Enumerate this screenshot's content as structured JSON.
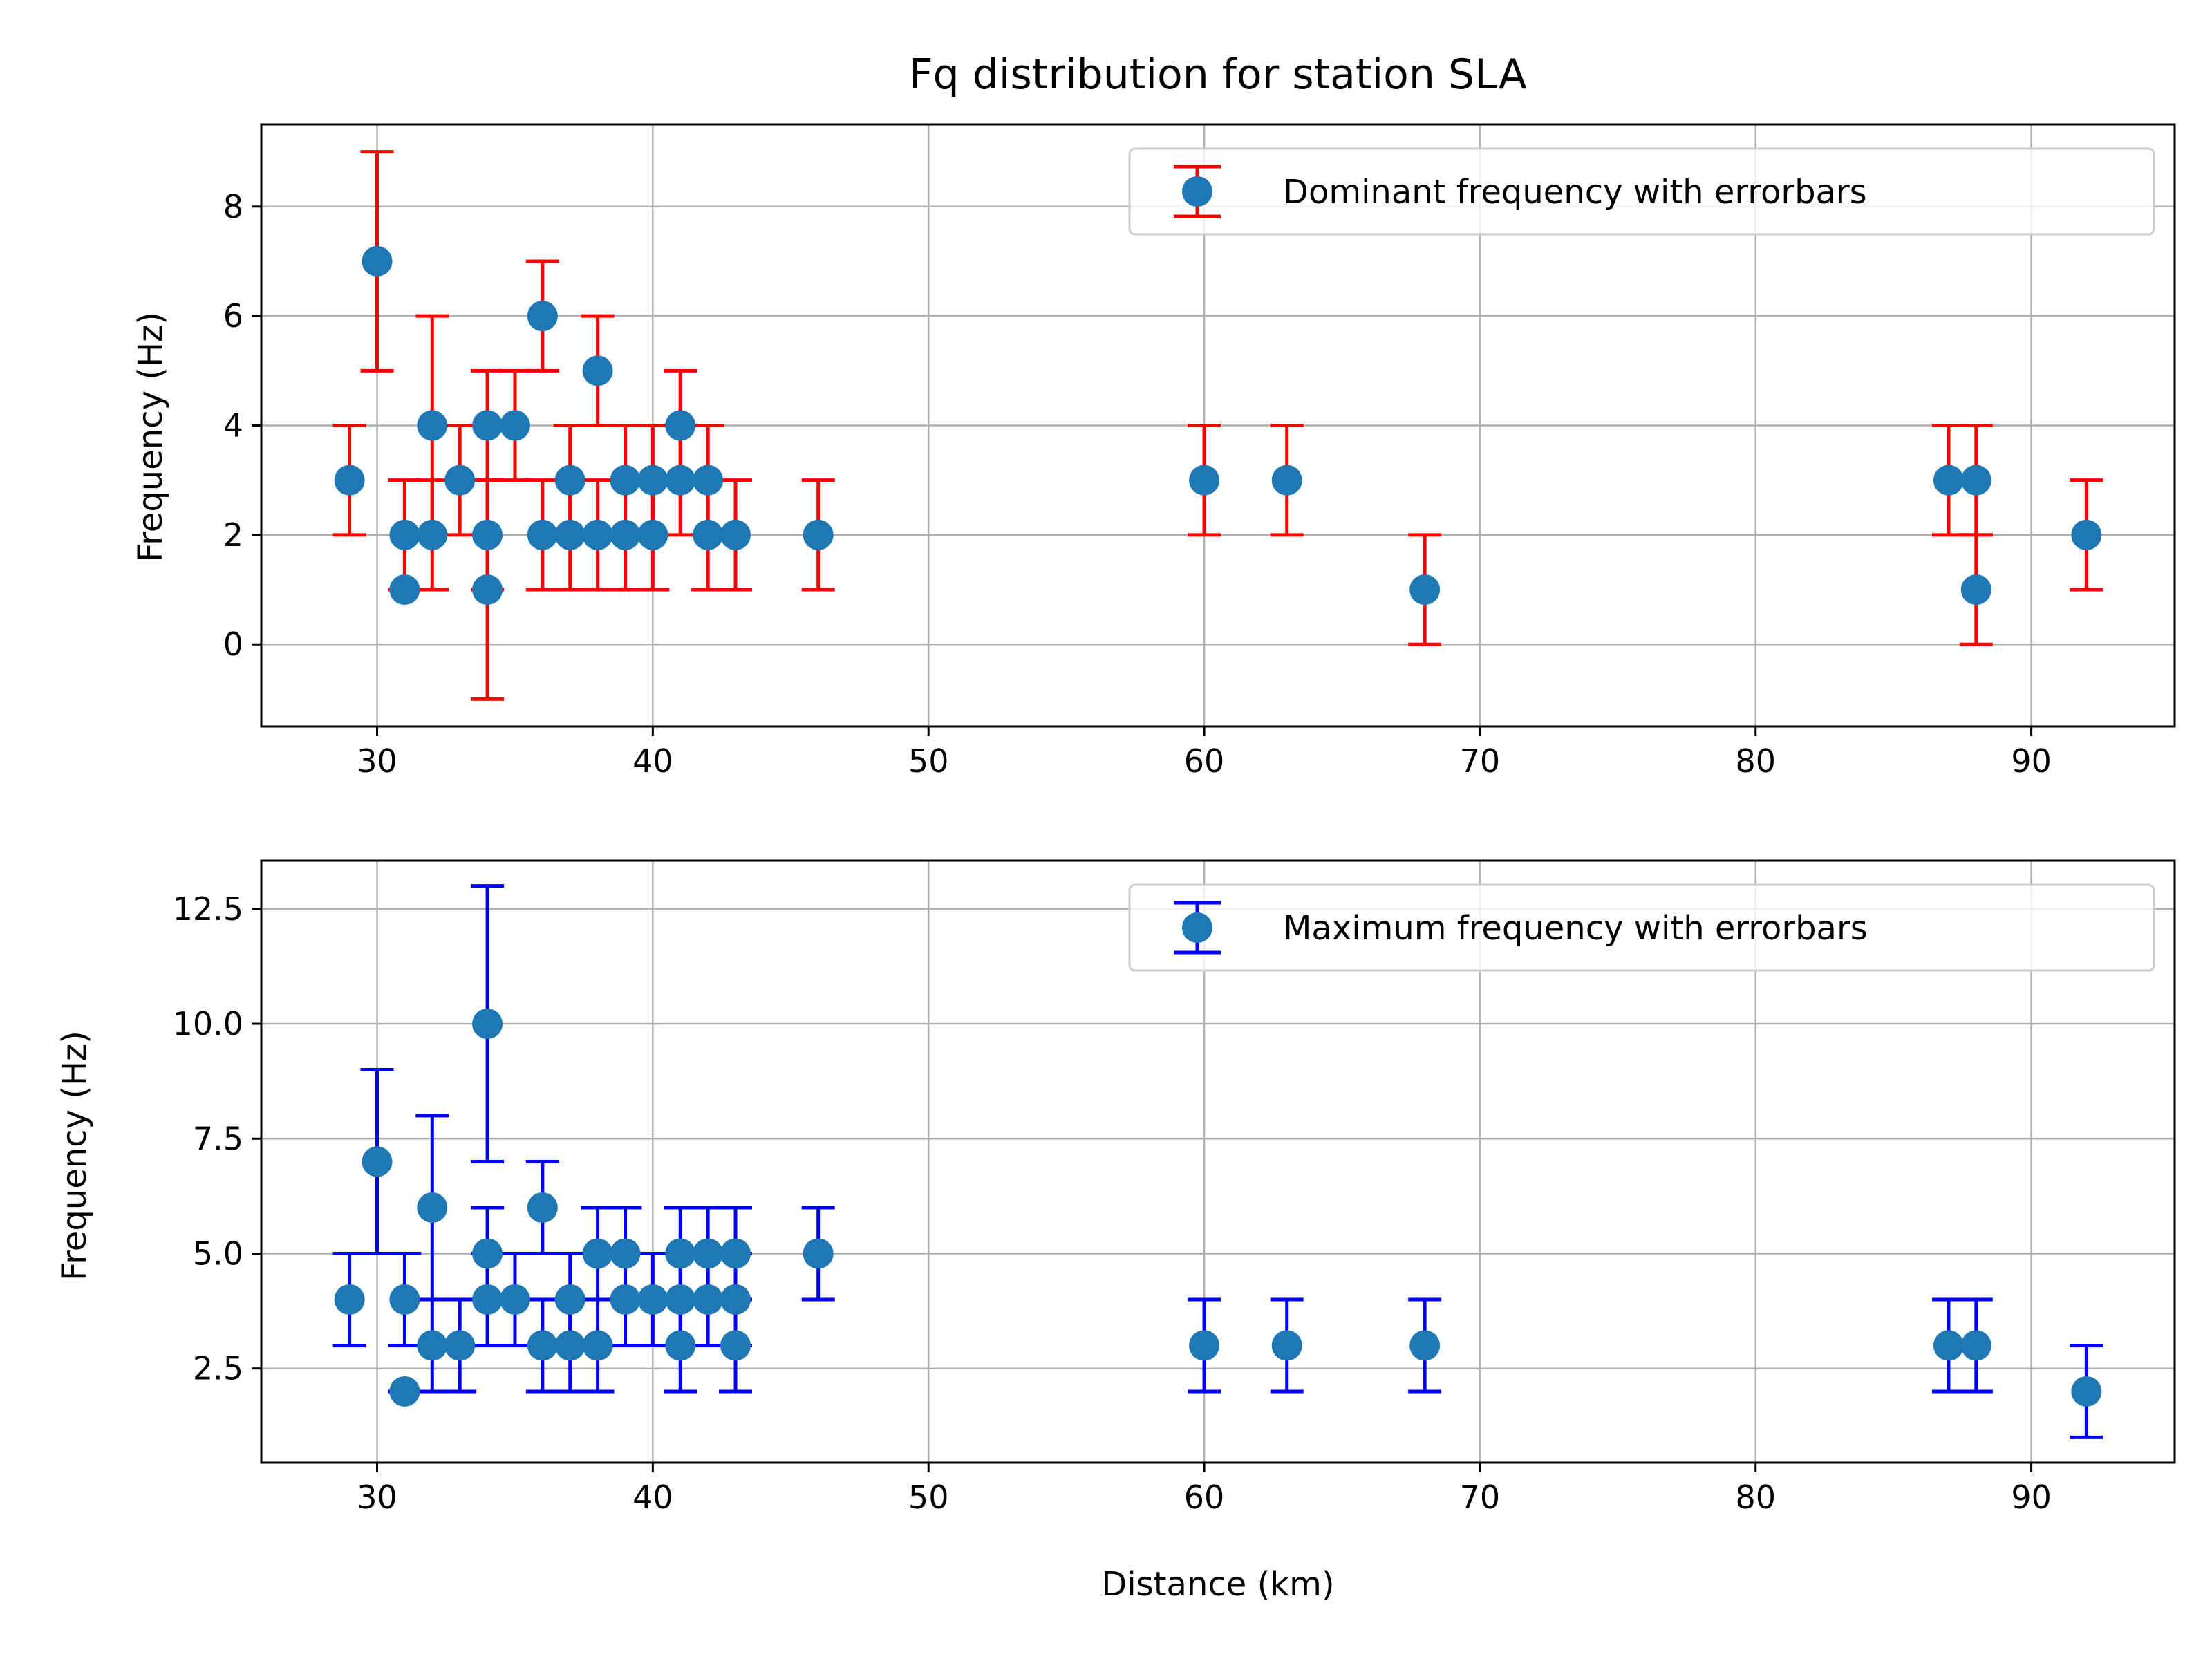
{
  "title": "Fq distribution for station SLA",
  "chart_data": [
    {
      "type": "scatter",
      "ylabel": "Frequency (Hz)",
      "xlabel": "",
      "xlim": [
        25.8,
        95.2
      ],
      "ylim": [
        -1.5,
        9.5
      ],
      "xticks": [
        30,
        40,
        50,
        60,
        70,
        80,
        90
      ],
      "yticks": [
        0,
        2,
        4,
        6,
        8
      ],
      "ytick_labels": [
        "0",
        "2",
        "4",
        "6",
        "8"
      ],
      "grid": true,
      "legend_position": "top-right",
      "marker_color": "#1f77b4",
      "error_color": "#ff0000",
      "series": [
        {
          "name": "Dominant frequency with errorbars",
          "points": [
            {
              "x": 29,
              "y": 3,
              "err": 1
            },
            {
              "x": 30,
              "y": 7,
              "err": 2
            },
            {
              "x": 31,
              "y": 2,
              "err": 1
            },
            {
              "x": 31,
              "y": 1,
              "err": 0
            },
            {
              "x": 32,
              "y": 4,
              "err": 2
            },
            {
              "x": 32,
              "y": 2,
              "err": 1
            },
            {
              "x": 33,
              "y": 3,
              "err": 1
            },
            {
              "x": 34,
              "y": 4,
              "err": 1
            },
            {
              "x": 34,
              "y": 2,
              "err": 1
            },
            {
              "x": 34,
              "y": 1,
              "err": 2
            },
            {
              "x": 35,
              "y": 4,
              "err": 1
            },
            {
              "x": 36,
              "y": 6,
              "err": 1
            },
            {
              "x": 36,
              "y": 2,
              "err": 1
            },
            {
              "x": 37,
              "y": 3,
              "err": 1
            },
            {
              "x": 37,
              "y": 2,
              "err": 1
            },
            {
              "x": 38,
              "y": 5,
              "err": 1
            },
            {
              "x": 38,
              "y": 2,
              "err": 1
            },
            {
              "x": 39,
              "y": 3,
              "err": 1
            },
            {
              "x": 39,
              "y": 2,
              "err": 1
            },
            {
              "x": 40,
              "y": 3,
              "err": 1
            },
            {
              "x": 40,
              "y": 2,
              "err": 1
            },
            {
              "x": 41,
              "y": 4,
              "err": 1
            },
            {
              "x": 41,
              "y": 3,
              "err": 1
            },
            {
              "x": 42,
              "y": 3,
              "err": 1
            },
            {
              "x": 42,
              "y": 2,
              "err": 1
            },
            {
              "x": 43,
              "y": 2,
              "err": 1
            },
            {
              "x": 46,
              "y": 2,
              "err": 1
            },
            {
              "x": 60,
              "y": 3,
              "err": 1
            },
            {
              "x": 63,
              "y": 3,
              "err": 1
            },
            {
              "x": 68,
              "y": 1,
              "err": 1
            },
            {
              "x": 87,
              "y": 3,
              "err": 1
            },
            {
              "x": 88,
              "y": 3,
              "err": 1
            },
            {
              "x": 88,
              "y": 1,
              "err": 1
            },
            {
              "x": 92,
              "y": 2,
              "err": 1
            }
          ]
        }
      ]
    },
    {
      "type": "scatter",
      "ylabel": "Frequency (Hz)",
      "xlabel": "Distance (km)",
      "xlim": [
        25.8,
        95.2
      ],
      "ylim": [
        0.45,
        13.55
      ],
      "xticks": [
        30,
        40,
        50,
        60,
        70,
        80,
        90
      ],
      "yticks": [
        2.5,
        5.0,
        7.5,
        10.0,
        12.5
      ],
      "ytick_labels": [
        "2.5",
        "5.0",
        "7.5",
        "10.0",
        "12.5"
      ],
      "grid": true,
      "legend_position": "top-right",
      "marker_color": "#1f77b4",
      "error_color": "#0000ff",
      "series": [
        {
          "name": "Maximum frequency with errorbars",
          "points": [
            {
              "x": 29,
              "y": 4,
              "err": 1
            },
            {
              "x": 30,
              "y": 7,
              "err": 2
            },
            {
              "x": 31,
              "y": 4,
              "err": 1
            },
            {
              "x": 31,
              "y": 2,
              "err": 0
            },
            {
              "x": 32,
              "y": 6,
              "err": 2
            },
            {
              "x": 32,
              "y": 3,
              "err": 1
            },
            {
              "x": 33,
              "y": 3,
              "err": 1
            },
            {
              "x": 34,
              "y": 10,
              "err": 3
            },
            {
              "x": 34,
              "y": 5,
              "err": 1
            },
            {
              "x": 34,
              "y": 4,
              "err": 1
            },
            {
              "x": 35,
              "y": 4,
              "err": 1
            },
            {
              "x": 36,
              "y": 6,
              "err": 1
            },
            {
              "x": 36,
              "y": 3,
              "err": 1
            },
            {
              "x": 37,
              "y": 4,
              "err": 1
            },
            {
              "x": 37,
              "y": 3,
              "err": 1
            },
            {
              "x": 38,
              "y": 5,
              "err": 1
            },
            {
              "x": 38,
              "y": 3,
              "err": 1
            },
            {
              "x": 39,
              "y": 5,
              "err": 1
            },
            {
              "x": 39,
              "y": 4,
              "err": 1
            },
            {
              "x": 40,
              "y": 4,
              "err": 1
            },
            {
              "x": 41,
              "y": 5,
              "err": 1
            },
            {
              "x": 41,
              "y": 4,
              "err": 1
            },
            {
              "x": 41,
              "y": 3,
              "err": 1
            },
            {
              "x": 42,
              "y": 5,
              "err": 1
            },
            {
              "x": 42,
              "y": 4,
              "err": 1
            },
            {
              "x": 43,
              "y": 5,
              "err": 1
            },
            {
              "x": 43,
              "y": 4,
              "err": 1
            },
            {
              "x": 43,
              "y": 3,
              "err": 1
            },
            {
              "x": 46,
              "y": 5,
              "err": 1
            },
            {
              "x": 60,
              "y": 3,
              "err": 1
            },
            {
              "x": 63,
              "y": 3,
              "err": 1
            },
            {
              "x": 68,
              "y": 3,
              "err": 1
            },
            {
              "x": 87,
              "y": 3,
              "err": 1
            },
            {
              "x": 88,
              "y": 3,
              "err": 1
            },
            {
              "x": 92,
              "y": 2,
              "err": 1
            }
          ]
        }
      ]
    }
  ]
}
